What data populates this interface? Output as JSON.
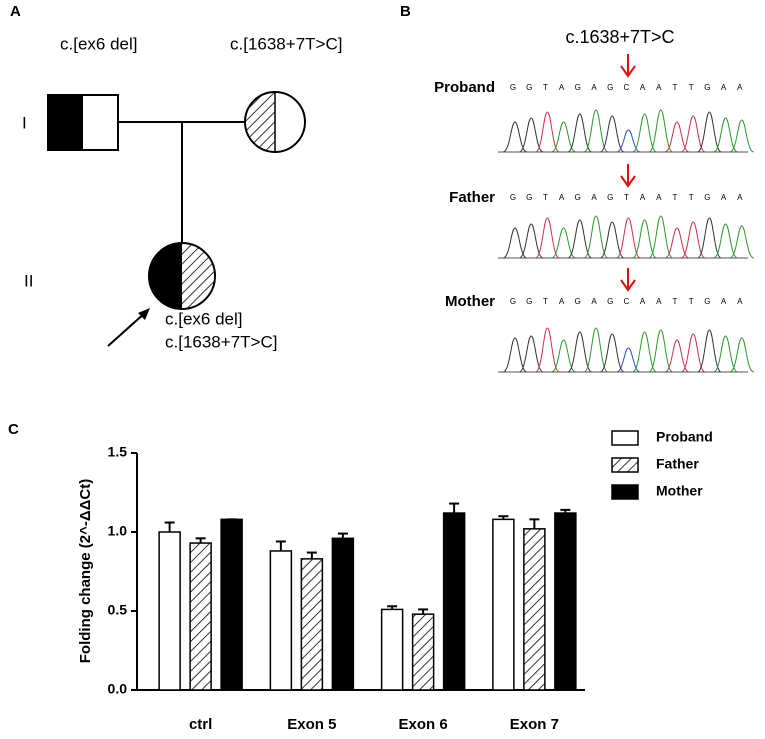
{
  "panels": {
    "a": "A",
    "b": "B",
    "c": "C"
  },
  "pedigree": {
    "generations": [
      "I",
      "II"
    ],
    "father_label": "c.[ex6 del]",
    "mother_label": "c.[1638+7T>C]",
    "proband_labels": [
      "c.[ex6 del]",
      "c.[1638+7T>C]"
    ]
  },
  "sequencing": {
    "variant": "c.1638+7T>C",
    "rows": [
      {
        "name": "Proband",
        "sequence": [
          "G",
          "G",
          "T",
          "A",
          "G",
          "A",
          "G",
          "C",
          "A",
          "A",
          "T",
          "T",
          "G",
          "A",
          "A"
        ]
      },
      {
        "name": "Father",
        "sequence": [
          "G",
          "G",
          "T",
          "A",
          "G",
          "A",
          "G",
          "T",
          "A",
          "A",
          "T",
          "T",
          "G",
          "A",
          "A"
        ]
      },
      {
        "name": "Mother",
        "sequence": [
          "G",
          "G",
          "T",
          "A",
          "G",
          "A",
          "G",
          "C",
          "A",
          "A",
          "T",
          "T",
          "G",
          "A",
          "A"
        ]
      }
    ]
  },
  "chart_data": {
    "type": "bar",
    "ylabel": "Folding change (2^-ΔΔCt)",
    "categories": [
      "ctrl",
      "Exon 5",
      "Exon 6",
      "Exon 7"
    ],
    "series": [
      {
        "name": "Proband",
        "color": "#ffffff",
        "values": [
          1.0,
          0.88,
          0.51,
          1.08
        ],
        "errors": [
          0.06,
          0.06,
          0.02,
          0.02
        ]
      },
      {
        "name": "Father",
        "color": "#ffffff",
        "pattern": "hatch",
        "values": [
          0.93,
          0.83,
          0.48,
          1.02
        ],
        "errors": [
          0.03,
          0.04,
          0.03,
          0.06
        ]
      },
      {
        "name": "Mother",
        "color": "#000000",
        "values": [
          1.08,
          0.96,
          1.12,
          1.12
        ],
        "errors": [
          0,
          0.03,
          0.06,
          0.02
        ]
      }
    ],
    "ylim": [
      0,
      1.5
    ],
    "yticks": [
      {
        "value": 0,
        "label": "0.0"
      },
      0.5,
      {
        "value": 1,
        "label": "1.0"
      },
      1.5
    ],
    "legend": "upper right"
  }
}
